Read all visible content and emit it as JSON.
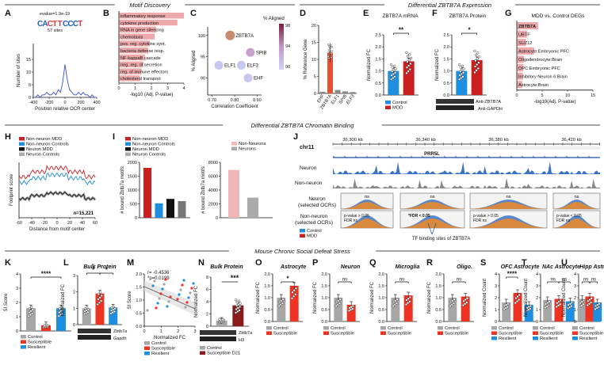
{
  "section_titles": {
    "motif": "Motif Discovery",
    "expression": "Differential ZBTB7A Expression",
    "binding": "Differential ZBTB7A Chromatin Binding",
    "stress": "Mouse Chronic Social Defeat Stress"
  },
  "panel_letters": [
    "A",
    "B",
    "C",
    "D",
    "E",
    "F",
    "G",
    "H",
    "I",
    "J",
    "K",
    "L",
    "M",
    "N",
    "O",
    "P",
    "Q",
    "R",
    "S",
    "T",
    "U"
  ],
  "colors": {
    "control": "#a6a6a6",
    "susceptible": "#ee3322",
    "resilient": "#1e8fe0",
    "mdd": "#cc1f1f",
    "pink_bar": "#f2b6b6",
    "neuron_track": "#3b73c4",
    "nonneuron_track": "#9b9b9b",
    "orange": "#f08a24",
    "dark_red": "#8b1a1a",
    "pale_bar": "#f4a7a7",
    "black": "#111111"
  },
  "panelA": {
    "evalue": "evalue=1.9e-19",
    "sites": "57 sites",
    "logo_text": "CACTTCCCT",
    "ylabel": "Number of sites",
    "xlabel": "Position relative OCR center",
    "xticks": [
      "-400",
      "-200",
      "0",
      "200",
      "400"
    ],
    "yticks": [
      "0",
      "5",
      "10",
      "15"
    ],
    "series": [
      0,
      0,
      1,
      0,
      1,
      1,
      2,
      1,
      1,
      2,
      1,
      3,
      2,
      6,
      13,
      7,
      3,
      2,
      1,
      1,
      2,
      1,
      2,
      1,
      1,
      0,
      1,
      0,
      0
    ]
  },
  "panelB": {
    "terms": [
      "inflammatory response",
      "cytokine production",
      "RNA in gene silencing",
      "chemotaxis",
      "pos. reg. cytokine synt.",
      "bacteria defense resp.",
      "NF-kappaB cascade",
      "neg. reg. of secretion",
      "reg. of immune effectors",
      "cholesterol transport"
    ],
    "values": [
      4.0,
      3.6,
      2.3,
      2.2,
      1.9,
      1.8,
      1.6,
      1.5,
      1.4,
      1.3
    ],
    "xlabel": "-log10 (Adj. P-value)",
    "xticks": [
      "0",
      "1",
      "2",
      "3",
      "4"
    ]
  },
  "panelC": {
    "points": [
      {
        "label": "ZBTB7A",
        "x": 0.78,
        "y": 100,
        "aligned": 98
      },
      {
        "label": "SPIB",
        "x": 0.87,
        "y": 96,
        "aligned": 94
      },
      {
        "label": "ELF1",
        "x": 0.73,
        "y": 93,
        "aligned": 91
      },
      {
        "label": "ELF3",
        "x": 0.83,
        "y": 93,
        "aligned": 92
      },
      {
        "label": "EHF",
        "x": 0.86,
        "y": 90,
        "aligned": 91
      }
    ],
    "xlabel": "Correlation Coefficient",
    "ylabel": "% Aligned",
    "xticks": [
      "0.70",
      "0.80",
      "0.90"
    ],
    "yticks": [
      "90",
      "95",
      "100"
    ],
    "legend_title": "% Aligned",
    "legend_ticks": [
      "98",
      "94",
      "90"
    ]
  },
  "panelD": {
    "genes": [
      "EHF",
      "ZBTB7A",
      "ELF1",
      "SPIB",
      "ELF3"
    ],
    "values": [
      0.5,
      12,
      1.0,
      0.6,
      0.4
    ],
    "ylabel": "% Reference Gene",
    "yticks": [
      "0",
      "5",
      "10",
      "15",
      "20"
    ]
  },
  "panelE": {
    "title": "ZBTB7A mRNA",
    "sig": "**",
    "ylabel": "Normalized FC",
    "yticks": [
      "0.0",
      "0.5",
      "1.0",
      "1.5",
      "2.0",
      "2.5"
    ],
    "groups": [
      {
        "name": "Control",
        "mean": 1.0
      },
      {
        "name": "MDD",
        "mean": 1.4
      }
    ],
    "legend": [
      "Control",
      "MDD"
    ]
  },
  "panelF": {
    "title": "ZBTB7A Protein",
    "sig": "*",
    "ylabel": "Normalized FC",
    "yticks": [
      "0.0",
      "0.5",
      "1.0",
      "1.5",
      "2.0",
      "2.5"
    ],
    "groups": [
      {
        "name": "Control",
        "mean": 1.0
      },
      {
        "name": "MDD",
        "mean": 1.45
      }
    ],
    "blot_labels": [
      "Anti-ZBTB7A",
      "Anti-GAPDH"
    ]
  },
  "panelG": {
    "title": "MDD vs. Control DEGs",
    "terms": [
      "ZBTB7A",
      "UBTF",
      "SUZ12",
      "Astrocyte:Embryonic PFC",
      "Oligodendrocyte:Brain",
      "OPC:Embryonic PFC",
      "Inhibitory Neuron 6:Brain",
      "Astrocyte:Brain"
    ],
    "values": [
      4.2,
      2.0,
      1.8,
      3.4,
      1.4,
      1.3,
      1.2,
      1.1
    ],
    "xlabel": "-log10(Adj. P-value)",
    "xticks": [
      "0",
      "5",
      "10",
      "15"
    ]
  },
  "panelH": {
    "legend": [
      "Non-neuron MDD",
      "Non-neuron Controls",
      "Neuron MDD",
      "Neuron Controls"
    ],
    "ylabel": "Footprint score",
    "xlabel": "Distance from motif center",
    "n_label": "n=15,221",
    "xticks": [
      "-60",
      "-40",
      "-20",
      "0",
      "20",
      "40",
      "60"
    ]
  },
  "panelI": {
    "legend": [
      "Non-neuron MDD",
      "Non-neuron Controls",
      "Neuron MDD",
      "Neuron Controls"
    ],
    "ylabel": "# bound Zbtb7a motifs",
    "yticks": [
      "0",
      "500",
      "1000",
      "1500",
      "2000"
    ],
    "values": [
      1800,
      520,
      680,
      600
    ],
    "legend2": [
      "Non-Neurons",
      "Neurons"
    ],
    "yticks2": [
      "0",
      "2000",
      "4000",
      "6000",
      "8000"
    ],
    "values2": [
      6900,
      2900
    ]
  },
  "panelJ": {
    "chrom": "chr11",
    "coords": [
      "36,300 kb",
      "36,340 kb",
      "36,380 kb",
      "36,420 kb"
    ],
    "gene": "PRR5L",
    "tracks": [
      "Neuron",
      "Non-neuron",
      "Neuron\n(selected OCRs)",
      "Non-neuron\n(selected OCRs)"
    ],
    "ns": [
      "ns",
      "ns",
      "ns",
      "ns"
    ],
    "stat1": "p-value > 0.05\nFDR ns",
    "stat2": "*FDR < 0.05",
    "stat3": "p-value > 0.05\nFDR ns",
    "stat4": "p-value < 0.05\nFDR ns",
    "legend": [
      "Control",
      "MDD"
    ],
    "tfbs": "TF binding sites of ZBTB7A"
  },
  "panelK": {
    "ylabel": "SI Score",
    "sig": "****",
    "yticks": [
      "0",
      "1",
      "2",
      "3",
      "4"
    ],
    "values": [
      1.6,
      0.4,
      1.6
    ],
    "legend": [
      "Control",
      "Susceptible",
      "Resilient"
    ]
  },
  "panelL": {
    "title": "Bulk Protein",
    "ylabel": "Normalized FC",
    "sig": [
      "*",
      "*"
    ],
    "yticks": [
      "0",
      "1",
      "2",
      "3"
    ],
    "values": [
      1.0,
      1.9,
      1.05
    ],
    "blot_labels": [
      "Zbtb7a",
      "Gapdh"
    ]
  },
  "panelM": {
    "stats": "r= -0.4536\n*p=0.0199",
    "ylabel": "SI Score",
    "xlabel": "Normalized FC",
    "xticks": [
      "0",
      "1",
      "2",
      "3"
    ],
    "yticks": [
      "0.0",
      "0.5",
      "1.0",
      "1.5",
      "2.0"
    ],
    "legend": [
      "Control",
      "Susceptible",
      "Resilient"
    ]
  },
  "panelN": {
    "title": "Bulk Protein",
    "ylabel": "Normalized FC",
    "sig": "***",
    "yticks": [
      "0",
      "2",
      "4",
      "6",
      "8"
    ],
    "values": [
      0.9,
      3.4
    ],
    "blot_labels": [
      "Zbtb7a",
      "H3"
    ],
    "legend": [
      "Control",
      "Susceptible D21"
    ]
  },
  "panelO": {
    "title": "Astrocyte",
    "sig": "*",
    "ylabel": "Normalized FC",
    "yticks": [
      "0.0",
      "0.5",
      "1.0",
      "1.5",
      "2.0"
    ],
    "values": [
      1.0,
      1.5
    ],
    "legend": [
      "Control",
      "Susceptible"
    ]
  },
  "panelP": {
    "title": "Neuron",
    "sig": "ns",
    "ylabel": "Normalized FC",
    "yticks": [
      "0.0",
      "0.5",
      "1.0",
      "1.5",
      "2.0"
    ],
    "values": [
      1.0,
      0.7
    ],
    "legend": [
      "Control",
      "Susceptible"
    ]
  },
  "panelQ": {
    "title": "Microglia",
    "sig": "ns",
    "ylabel": "Normalized FC",
    "yticks": [
      "0.0",
      "0.5",
      "1.0",
      "1.5",
      "2.0"
    ],
    "values": [
      1.0,
      1.1
    ],
    "legend": [
      "Control",
      "Susceptible"
    ]
  },
  "panelR": {
    "title": "Oligo.",
    "sig": "ns",
    "ylabel": "Normalized FC",
    "yticks": [
      "0.0",
      "0.5",
      "1.0",
      "1.5",
      "2.0"
    ],
    "values": [
      1.0,
      1.05
    ],
    "legend": [
      "Control",
      "Susceptible"
    ]
  },
  "panelS": {
    "title": "OFC Astrocyte",
    "sig": "****",
    "ylabel": "Normalized Count",
    "yticks": [
      "0",
      "1",
      "2",
      "3",
      "4"
    ],
    "values": [
      1.6,
      2.4,
      1.4
    ],
    "legend": [
      "Control",
      "Susceptible",
      "Resilient"
    ]
  },
  "panelT": {
    "title": "NAc Astrocyte",
    "sig": [
      "ns",
      "ns"
    ],
    "ylabel": "Normalized Count",
    "yticks": [
      "0",
      "1",
      "2",
      "3",
      "4"
    ],
    "values": [
      1.8,
      1.9,
      1.7
    ],
    "legend": [
      "Control",
      "Susceptible",
      "Resilient"
    ]
  },
  "panelU": {
    "title": "Hipp Astrocyte",
    "sig": [
      "ns",
      "ns"
    ],
    "ylabel": "Normalized Count",
    "yticks": [
      "0",
      "1",
      "2",
      "3",
      "4"
    ],
    "values": [
      1.9,
      2.1,
      1.6
    ],
    "legend": [
      "Control",
      "Susceptible",
      "Resilient"
    ]
  }
}
